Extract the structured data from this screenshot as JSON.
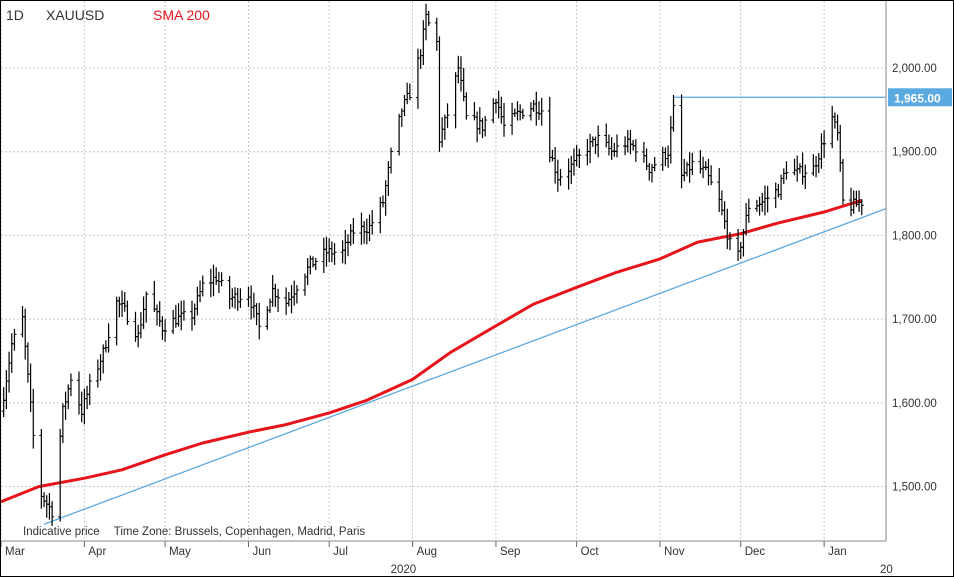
{
  "header": {
    "timeframe": "1D",
    "symbol": "XAUUSD",
    "indicator": "SMA 200"
  },
  "footer": {
    "note": "Indicative price",
    "timezone": "Time Zone: Brussels, Copenhagen, Madrid, Paris"
  },
  "colors": {
    "price_bars": "#000000",
    "sma": "#e8141c",
    "trendlines": "#5aa9e0",
    "grid": "#c8c8c8",
    "label_bg": "#5aa9e0"
  },
  "chart_data": {
    "type": "ohlc",
    "title": "XAUUSD",
    "timeframe": "1D",
    "y_axis": {
      "ticks": [
        1500,
        1600,
        1700,
        1800,
        1900,
        2000
      ],
      "tick_labels": [
        "1,500.00",
        "1,600.00",
        "1,700.00",
        "1,800.00",
        "1,900.00",
        "2,000.00"
      ],
      "ylim": [
        1435,
        2080
      ],
      "position": "right"
    },
    "x_axis": {
      "months": [
        "Mar",
        "Apr",
        "May",
        "Jun",
        "Jul",
        "Aug",
        "Sep",
        "Oct",
        "Nov",
        "Dec",
        "Jan"
      ],
      "year_label": "2020",
      "next_year_label": "20",
      "xlim": [
        "2020-03-01",
        "2021-01-24"
      ]
    },
    "grid": true,
    "price_label": {
      "value": 1965.0,
      "text": "1,965.00"
    },
    "price_points": [
      [
        "2020-03-01",
        1590
      ],
      [
        "2020-03-05",
        1670
      ],
      [
        "2020-03-09",
        1700
      ],
      [
        "2020-03-13",
        1560
      ],
      [
        "2020-03-16",
        1490
      ],
      [
        "2020-03-20",
        1470
      ],
      [
        "2020-03-24",
        1590
      ],
      [
        "2020-03-27",
        1630
      ],
      [
        "2020-03-31",
        1590
      ],
      [
        "2020-04-03",
        1620
      ],
      [
        "2020-04-08",
        1660
      ],
      [
        "2020-04-13",
        1720
      ],
      [
        "2020-04-16",
        1710
      ],
      [
        "2020-04-21",
        1680
      ],
      [
        "2020-04-24",
        1730
      ],
      [
        "2020-04-30",
        1690
      ],
      [
        "2020-05-05",
        1700
      ],
      [
        "2020-05-11",
        1705
      ],
      [
        "2020-05-15",
        1740
      ],
      [
        "2020-05-20",
        1750
      ],
      [
        "2020-05-25",
        1725
      ],
      [
        "2020-06-01",
        1730
      ],
      [
        "2020-06-05",
        1690
      ],
      [
        "2020-06-10",
        1735
      ],
      [
        "2020-06-15",
        1720
      ],
      [
        "2020-06-19",
        1740
      ],
      [
        "2020-06-24",
        1765
      ],
      [
        "2020-06-30",
        1780
      ],
      [
        "2020-07-06",
        1780
      ],
      [
        "2020-07-10",
        1805
      ],
      [
        "2020-07-16",
        1810
      ],
      [
        "2020-07-21",
        1840
      ],
      [
        "2020-07-24",
        1895
      ],
      [
        "2020-07-28",
        1950
      ],
      [
        "2020-07-31",
        1970
      ],
      [
        "2020-08-04",
        2020
      ],
      [
        "2020-08-06",
        2060
      ],
      [
        "2020-08-10",
        2030
      ],
      [
        "2020-08-11",
        1915
      ],
      [
        "2020-08-14",
        1945
      ],
      [
        "2020-08-18",
        2000
      ],
      [
        "2020-08-21",
        1940
      ],
      [
        "2020-08-27",
        1930
      ],
      [
        "2020-09-01",
        1965
      ],
      [
        "2020-09-04",
        1930
      ],
      [
        "2020-09-09",
        1945
      ],
      [
        "2020-09-15",
        1955
      ],
      [
        "2020-09-18",
        1950
      ],
      [
        "2020-09-21",
        1900
      ],
      [
        "2020-09-24",
        1870
      ],
      [
        "2020-09-30",
        1885
      ],
      [
        "2020-10-05",
        1905
      ],
      [
        "2020-10-09",
        1915
      ],
      [
        "2020-10-14",
        1900
      ],
      [
        "2020-10-19",
        1910
      ],
      [
        "2020-10-23",
        1905
      ],
      [
        "2020-10-28",
        1880
      ],
      [
        "2020-11-04",
        1900
      ],
      [
        "2020-11-06",
        1950
      ],
      [
        "2020-11-09",
        1870
      ],
      [
        "2020-11-13",
        1885
      ],
      [
        "2020-11-18",
        1875
      ],
      [
        "2020-11-23",
        1840
      ],
      [
        "2020-11-27",
        1790
      ],
      [
        "2020-11-30",
        1775
      ],
      [
        "2020-12-04",
        1835
      ],
      [
        "2020-12-09",
        1840
      ],
      [
        "2020-12-15",
        1855
      ],
      [
        "2020-12-18",
        1880
      ],
      [
        "2020-12-22",
        1875
      ],
      [
        "2020-12-28",
        1880
      ],
      [
        "2021-01-04",
        1940
      ],
      [
        "2021-01-06",
        1920
      ],
      [
        "2021-01-08",
        1840
      ],
      [
        "2021-01-11",
        1835
      ],
      [
        "2021-01-15",
        1840
      ]
    ],
    "series": [
      {
        "name": "SMA 200",
        "points": [
          [
            "2020-03-01",
            1482
          ],
          [
            "2020-03-15",
            1500
          ],
          [
            "2020-04-01",
            1510
          ],
          [
            "2020-04-15",
            1520
          ],
          [
            "2020-05-01",
            1538
          ],
          [
            "2020-05-15",
            1552
          ],
          [
            "2020-06-01",
            1565
          ],
          [
            "2020-06-15",
            1574
          ],
          [
            "2020-07-01",
            1588
          ],
          [
            "2020-07-15",
            1603
          ],
          [
            "2020-08-01",
            1628
          ],
          [
            "2020-08-15",
            1660
          ],
          [
            "2020-09-01",
            1692
          ],
          [
            "2020-09-15",
            1718
          ],
          [
            "2020-10-01",
            1738
          ],
          [
            "2020-10-15",
            1755
          ],
          [
            "2020-11-01",
            1772
          ],
          [
            "2020-11-15",
            1792
          ],
          [
            "2020-12-01",
            1802
          ],
          [
            "2020-12-15",
            1815
          ],
          [
            "2021-01-01",
            1828
          ],
          [
            "2021-01-15",
            1842
          ]
        ]
      }
    ],
    "trendlines": [
      {
        "points": [
          [
            "2020-03-17",
            1455
          ],
          [
            "2021-01-24",
            1832
          ]
        ]
      },
      {
        "points": [
          [
            "2020-11-06",
            1965
          ],
          [
            "2021-01-24",
            1965
          ]
        ]
      }
    ]
  }
}
